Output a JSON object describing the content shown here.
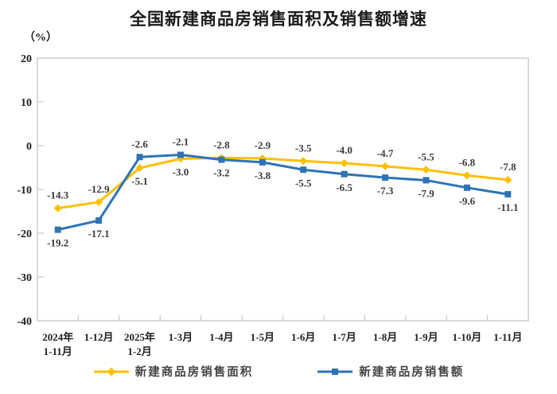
{
  "chart_data": {
    "type": "line",
    "title": "全国新建商品房销售面积及销售额增速",
    "unit_label": "（%）",
    "xlabel": "",
    "ylabel": "%",
    "ylim": [
      -40,
      20
    ],
    "yticks": [
      20,
      10,
      0,
      -10,
      -20,
      -30,
      -40
    ],
    "grid": false,
    "legend_position": "bottom",
    "categories": [
      {
        "line1": "2024年",
        "line2": "1-11月"
      },
      {
        "line1": "1-12月",
        "line2": ""
      },
      {
        "line1": "2025年",
        "line2": "1-2月"
      },
      {
        "line1": "1-3月",
        "line2": ""
      },
      {
        "line1": "1-4月",
        "line2": ""
      },
      {
        "line1": "1-5月",
        "line2": ""
      },
      {
        "line1": "1-6月",
        "line2": ""
      },
      {
        "line1": "1-7月",
        "line2": ""
      },
      {
        "line1": "1-8月",
        "line2": ""
      },
      {
        "line1": "1-9月",
        "line2": ""
      },
      {
        "line1": "1-10月",
        "line2": ""
      },
      {
        "line1": "1-11月",
        "line2": ""
      }
    ],
    "series": [
      {
        "name": "新建商品房销售面积",
        "color": "#FFC000",
        "marker": "diamond",
        "values": [
          -14.3,
          -12.9,
          -5.1,
          -3.0,
          -2.8,
          -2.9,
          -3.5,
          -4.0,
          -4.7,
          -5.5,
          -6.8,
          -7.8
        ],
        "label_pos": [
          "above",
          "above",
          "below",
          "below",
          "above",
          "above",
          "above",
          "above",
          "above",
          "above",
          "above",
          "above"
        ]
      },
      {
        "name": "新建商品房销售额",
        "color": "#2E74B5",
        "marker": "square",
        "values": [
          -19.2,
          -17.1,
          -2.6,
          -2.1,
          -3.2,
          -3.8,
          -5.5,
          -6.5,
          -7.3,
          -7.9,
          -9.6,
          -11.1
        ],
        "label_pos": [
          "below",
          "below",
          "above",
          "above",
          "below",
          "below",
          "below",
          "below",
          "below",
          "below",
          "below",
          "below"
        ]
      }
    ],
    "colors": {
      "plot_border": "#c9c9c9",
      "tick": "#c9c9c9",
      "axis_text": "#1f1f1f",
      "data_label": "#3a3a3a",
      "title_text": "#1a1a1a"
    }
  }
}
